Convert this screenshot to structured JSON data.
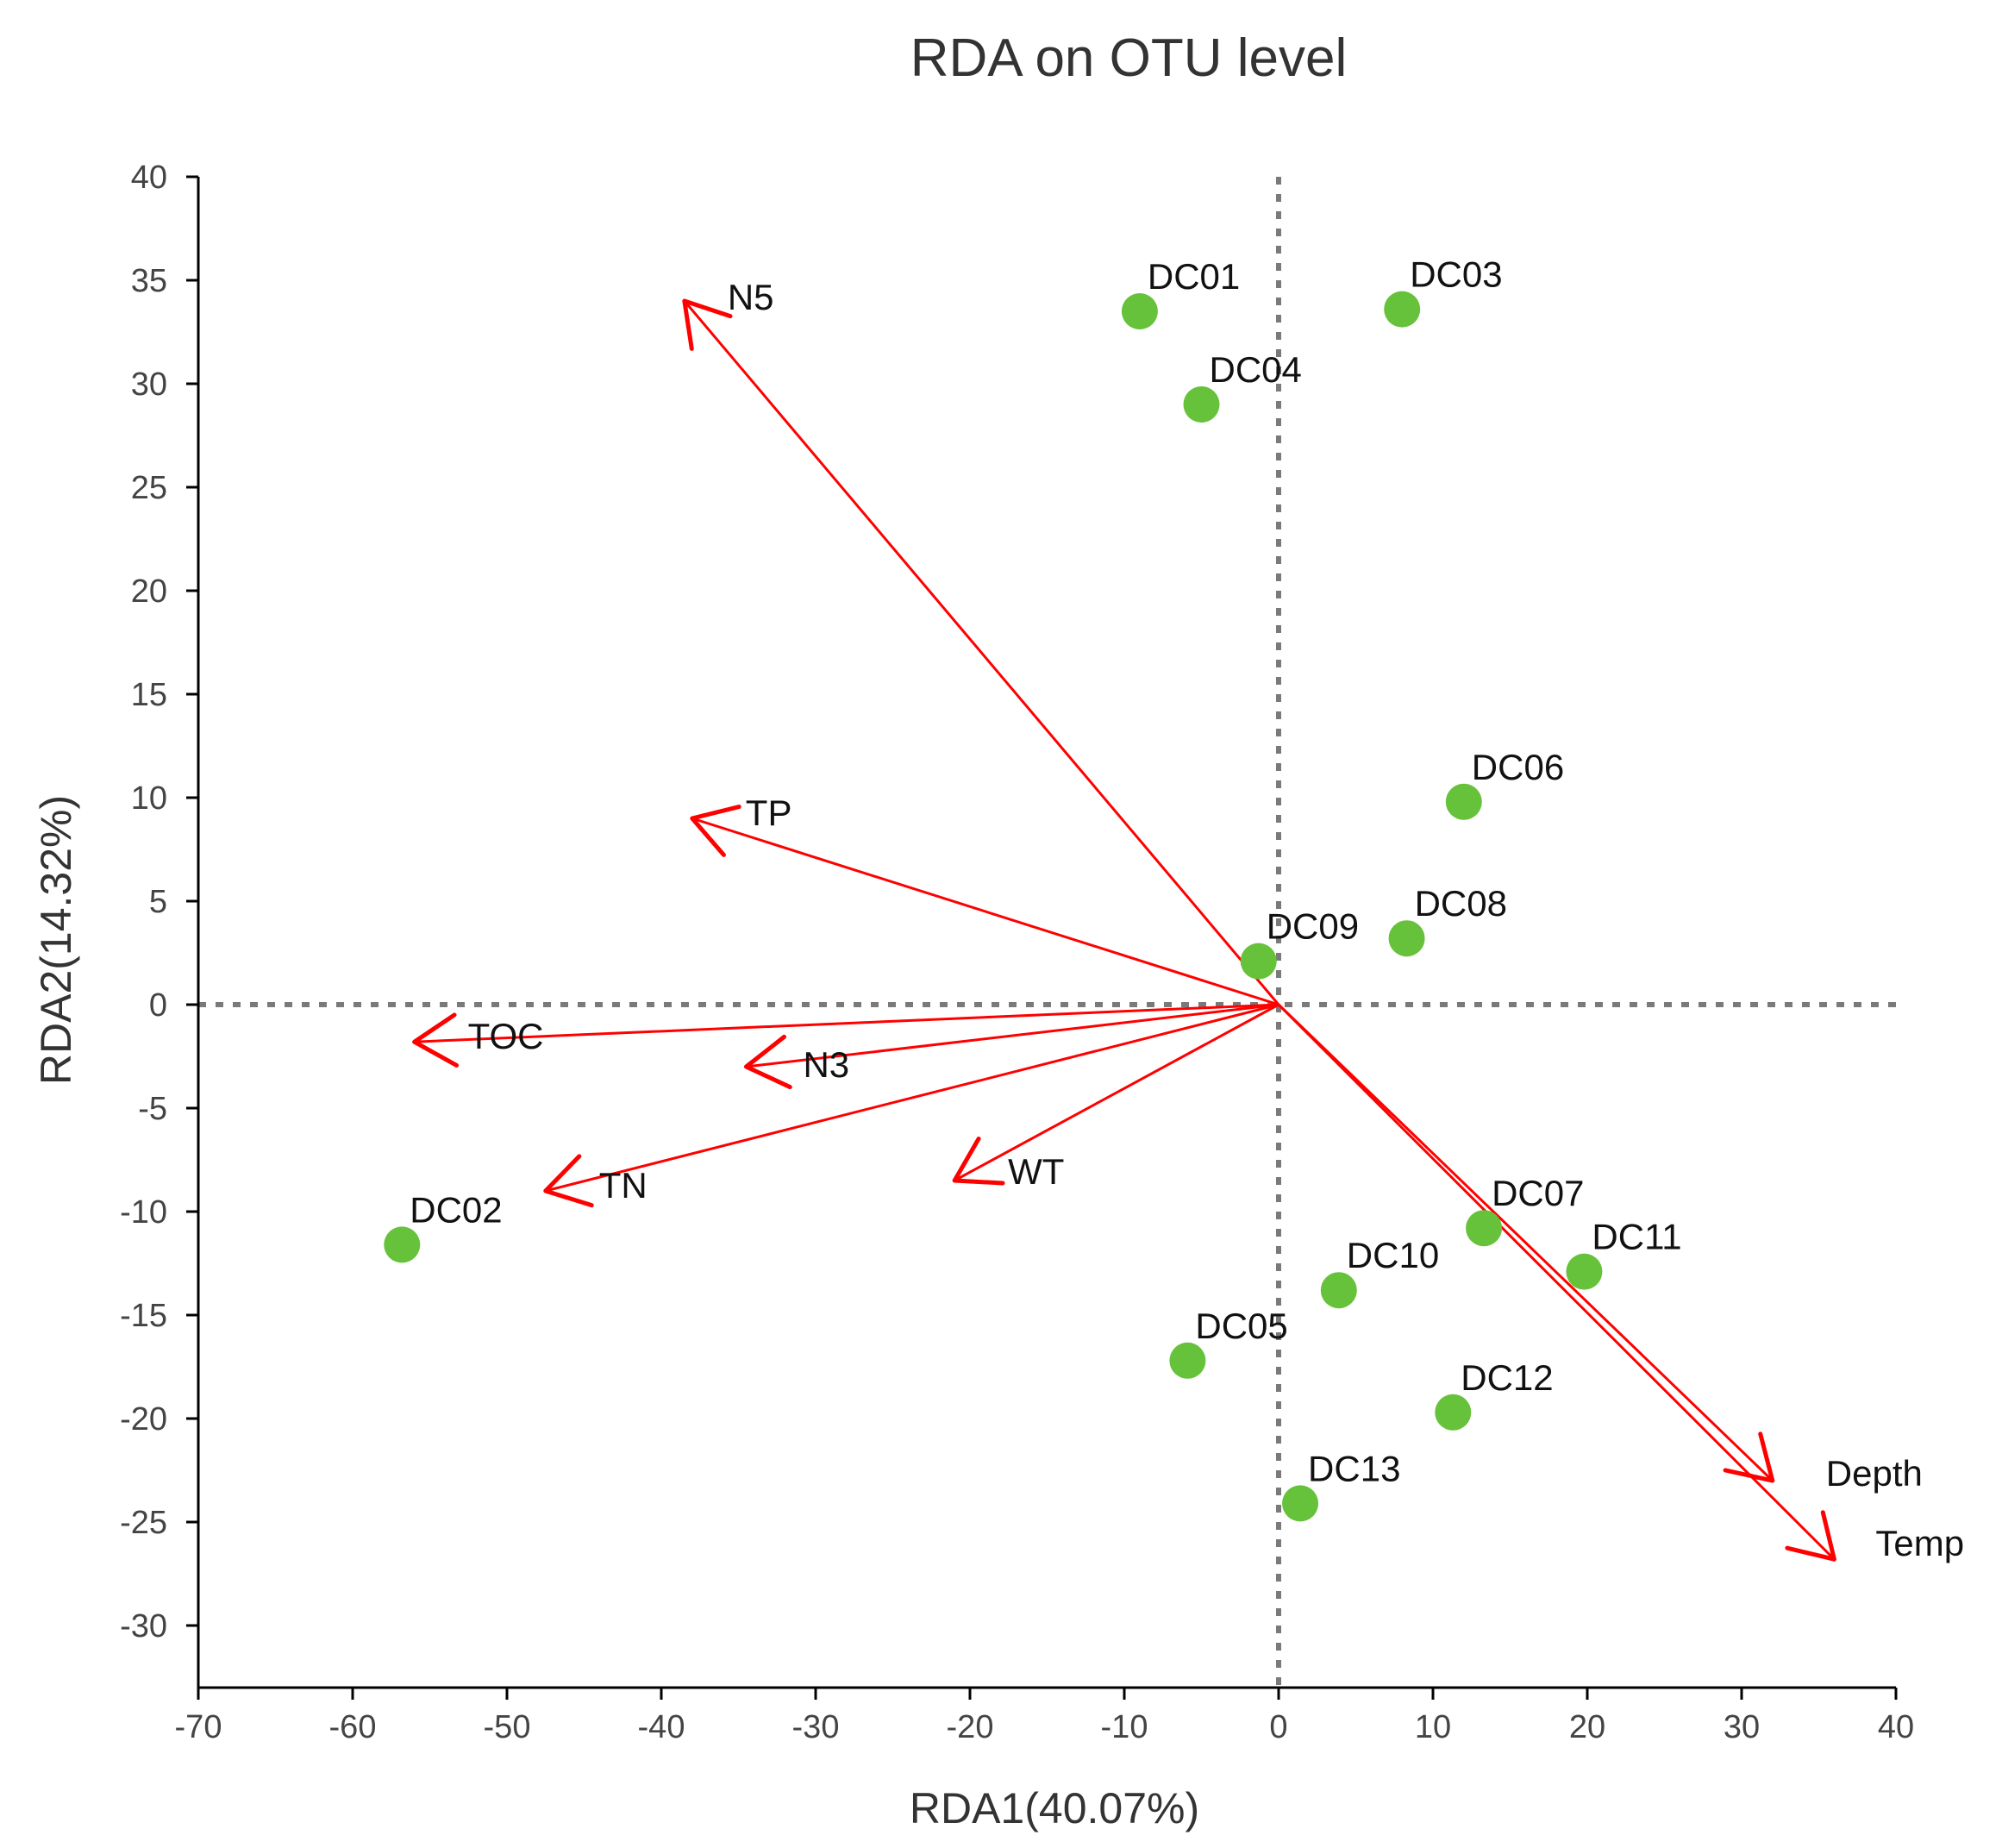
{
  "chart_data": {
    "type": "scatter",
    "title": "RDA on OTU level",
    "xlabel": "RDA1(40.07%)",
    "ylabel": "RDA2(14.32%)",
    "xlim": [
      -70,
      40
    ],
    "ylim": [
      -33,
      40
    ],
    "xticks": [
      -70,
      -60,
      -50,
      -40,
      -30,
      -20,
      -10,
      0,
      10,
      20,
      30,
      40
    ],
    "yticks": [
      40,
      35,
      30,
      25,
      20,
      15,
      10,
      5,
      0,
      -5,
      -10,
      -15,
      -20,
      -25,
      -30
    ],
    "point_color": "#66c23a",
    "arrow_color": "#ff0000",
    "points": [
      {
        "label": "DC01",
        "x": -9.0,
        "y": 33.5
      },
      {
        "label": "DC03",
        "x": 8.0,
        "y": 33.6
      },
      {
        "label": "DC04",
        "x": -5.0,
        "y": 29.0
      },
      {
        "label": "DC06",
        "x": 12.0,
        "y": 9.8
      },
      {
        "label": "DC09",
        "x": -1.3,
        "y": 2.1
      },
      {
        "label": "DC08",
        "x": 8.3,
        "y": 3.2
      },
      {
        "label": "DC07",
        "x": 13.3,
        "y": -10.8
      },
      {
        "label": "DC11",
        "x": 19.8,
        "y": -12.9
      },
      {
        "label": "DC10",
        "x": 3.9,
        "y": -13.8
      },
      {
        "label": "DC02",
        "x": -56.8,
        "y": -11.6
      },
      {
        "label": "DC05",
        "x": -5.9,
        "y": -17.2
      },
      {
        "label": "DC12",
        "x": 11.3,
        "y": -19.7
      },
      {
        "label": "DC13",
        "x": 1.4,
        "y": -24.1
      }
    ],
    "arrows": [
      {
        "label": "N5",
        "x": -38.5,
        "y": 34.0
      },
      {
        "label": "TP",
        "x": -38.0,
        "y": 9.0
      },
      {
        "label": "TOC",
        "x": -56.0,
        "y": -1.8
      },
      {
        "label": "N3",
        "x": -34.5,
        "y": -3.0
      },
      {
        "label": "TN",
        "x": -47.5,
        "y": -9.0
      },
      {
        "label": "WT",
        "x": -21.0,
        "y": -8.5
      },
      {
        "label": "Depth",
        "x": 32.0,
        "y": -23.0
      },
      {
        "label": "Temp",
        "x": 36.0,
        "y": -26.8
      }
    ]
  }
}
